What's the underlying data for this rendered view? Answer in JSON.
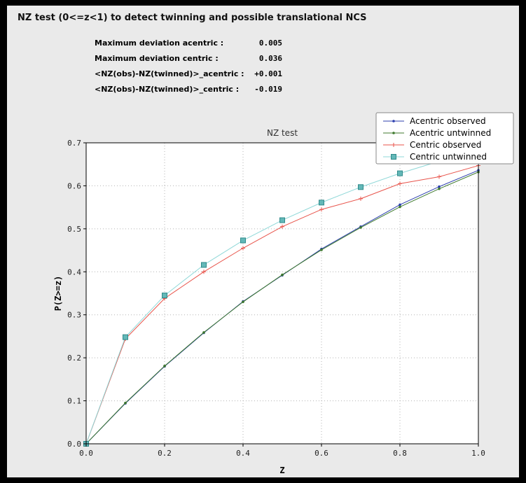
{
  "window": {
    "frame_color": "#000000",
    "panel_color": "#eaeaea"
  },
  "header": {
    "title": "NZ test (0<=z<1) to detect twinning and possible translational NCS"
  },
  "stats": [
    {
      "label": "Maximum deviation acentric :",
      "value": "0.005"
    },
    {
      "label": "Maximum deviation centric :",
      "value": "0.036"
    },
    {
      "label": "<NZ(obs)-NZ(twinned)>_acentric :",
      "value": "+0.001"
    },
    {
      "label": "<NZ(obs)-NZ(twinned)>_centric :",
      "value": "-0.019"
    }
  ],
  "chart_data": {
    "type": "line",
    "title": "NZ test",
    "xlabel": "Z",
    "ylabel": "P(Z>=z)",
    "xlim": [
      0.0,
      1.0
    ],
    "ylim": [
      0.0,
      0.7
    ],
    "xticks": [
      0.0,
      0.2,
      0.4,
      0.6,
      0.8,
      1.0
    ],
    "yticks": [
      0.0,
      0.1,
      0.2,
      0.3,
      0.4,
      0.5,
      0.6,
      0.7
    ],
    "grid": "dotted",
    "legend_position": "upper right",
    "plot_bg": "#ffffff",
    "grid_color": "#b3b3b3",
    "x": [
      0.0,
      0.1,
      0.2,
      0.3,
      0.4,
      0.5,
      0.6,
      0.7,
      0.8,
      0.9,
      1.0
    ],
    "series": [
      {
        "name": "Acentric observed",
        "color": "#2c3fae",
        "marker": "point",
        "values": [
          0.0,
          0.094,
          0.18,
          0.258,
          0.331,
          0.392,
          0.453,
          0.505,
          0.556,
          0.598,
          0.636
        ]
      },
      {
        "name": "Acentric untwinned",
        "color": "#3f7a2e",
        "marker": "point",
        "values": [
          0.0,
          0.095,
          0.181,
          0.259,
          0.33,
          0.393,
          0.451,
          0.503,
          0.551,
          0.593,
          0.632
        ]
      },
      {
        "name": "Centric observed",
        "color": "#e8534a",
        "marker": "plus",
        "values": [
          0.0,
          0.244,
          0.338,
          0.4,
          0.455,
          0.505,
          0.545,
          0.57,
          0.605,
          0.621,
          0.647
        ]
      },
      {
        "name": "Centric untwinned",
        "color": "#8fd8d8",
        "marker": "square",
        "marker_fill": "#63b8b8",
        "marker_edge": "#2f8a8a",
        "values": [
          0.0,
          0.248,
          0.345,
          0.416,
          0.473,
          0.52,
          0.561,
          0.597,
          0.629,
          0.657,
          0.683
        ]
      }
    ]
  }
}
